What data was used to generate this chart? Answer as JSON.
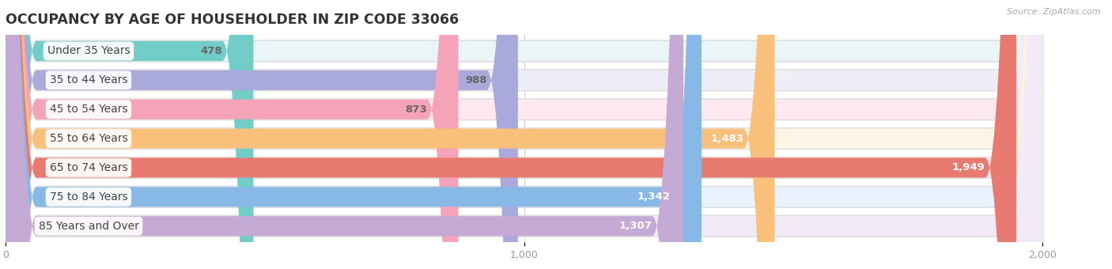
{
  "title": "OCCUPANCY BY AGE OF HOUSEHOLDER IN ZIP CODE 33066",
  "source": "Source: ZipAtlas.com",
  "categories": [
    "Under 35 Years",
    "35 to 44 Years",
    "45 to 54 Years",
    "55 to 64 Years",
    "65 to 74 Years",
    "75 to 84 Years",
    "85 Years and Over"
  ],
  "values": [
    478,
    988,
    873,
    1483,
    1949,
    1342,
    1307
  ],
  "bar_colors": [
    "#72cdc8",
    "#a9aadb",
    "#f5a3b8",
    "#f9c07c",
    "#e87a72",
    "#88b8e6",
    "#c5aad6"
  ],
  "bar_bg_colors": [
    "#eaf6f5",
    "#eeeef8",
    "#fde9ef",
    "#fef5e6",
    "#fce9e8",
    "#e9f2fc",
    "#f3eaf8"
  ],
  "value_text_colors": [
    "#666666",
    "#666666",
    "#666666",
    "#ffffff",
    "#ffffff",
    "#ffffff",
    "#ffffff"
  ],
  "xlim_max": 2000,
  "xticks": [
    0,
    1000,
    2000
  ],
  "background_color": "#ffffff",
  "bar_area_bg": "#f7f7f7",
  "title_fontsize": 12.5,
  "label_fontsize": 10,
  "value_fontsize": 9.5
}
